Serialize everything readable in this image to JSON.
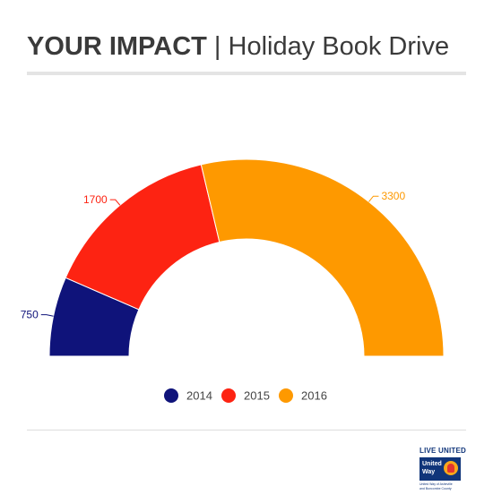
{
  "header": {
    "title_bold": "YOUR IMPACT",
    "title_rest": " | Holiday Book Drive"
  },
  "chart_data": {
    "type": "pie",
    "variant": "semicircle-donut",
    "title": "YOUR IMPACT | Holiday Book Drive",
    "categories": [
      "2014",
      "2015",
      "2016"
    ],
    "values": [
      750,
      1700,
      3300
    ],
    "colors": [
      "#0f137a",
      "#fd2312",
      "#fe9900"
    ],
    "legend": "bottom-center",
    "data_labels": true
  },
  "logo": {
    "line1": "LIVE UNITED",
    "line2a": "United",
    "line2b": "Way",
    "line3": "United Way of Asheville",
    "line4": "and Buncombe County"
  }
}
